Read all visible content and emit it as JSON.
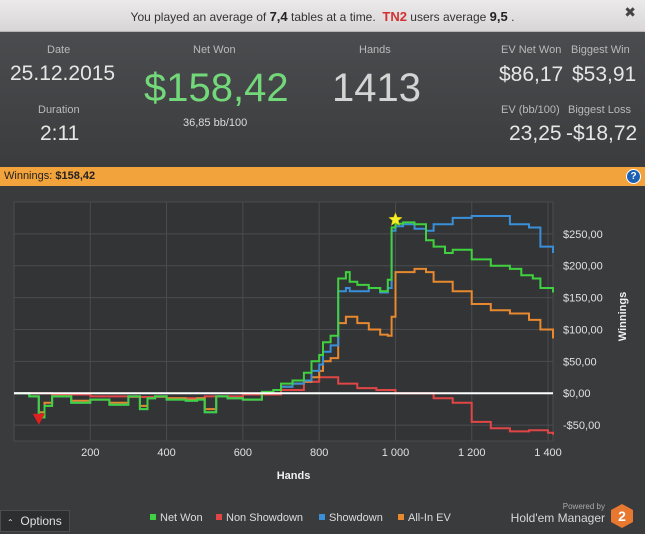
{
  "notice": {
    "prefix": "You played an average of",
    "avg_tables": "7,4",
    "middle": "tables at a time.",
    "group": "TN2",
    "suffix": "users average",
    "group_avg": "9,5",
    "end": ".",
    "close_label": "✖"
  },
  "stats": {
    "date_label": "Date",
    "date": "25.12.2015",
    "duration_label": "Duration",
    "duration": "2:11",
    "net_won_label": "Net Won",
    "net_won": "$158,42",
    "bb100": "36,85 bb/100",
    "hands_label": "Hands",
    "hands": "1413",
    "ev_net_won_label": "EV Net Won",
    "ev_net_won": "$86,17",
    "biggest_win_label": "Biggest Win",
    "biggest_win": "$53,91",
    "ev_bb_label": "EV (bb/100)",
    "ev_bb": "23,25",
    "biggest_loss_label": "Biggest Loss",
    "biggest_loss": "-$18,72"
  },
  "winnings_bar": {
    "label": "Winnings:",
    "value": "$158,42",
    "help": "?"
  },
  "colors": {
    "net_won": "#3fd13f",
    "non_showdown": "#e04646",
    "showdown": "#3a8fd9",
    "all_in_ev": "#e8892f",
    "accent": "#f2a33b"
  },
  "chart_data": {
    "type": "line",
    "xlabel": "Hands",
    "ylabel": "Winnings",
    "xlim": [
      0,
      1413
    ],
    "ylim": [
      -75,
      300
    ],
    "x_ticks": [
      200,
      400,
      600,
      800,
      1000,
      1200,
      1400
    ],
    "x_tick_labels": [
      "200",
      "400",
      "600",
      "800",
      "1 000",
      "1 200",
      "1 400"
    ],
    "y_ticks": [
      -50,
      0,
      50,
      100,
      150,
      200,
      250
    ],
    "y_tick_labels": [
      "-$50,00",
      "$0,00",
      "$50,00",
      "$100,00",
      "$150,00",
      "$200,00",
      "$250,00"
    ],
    "grid": true,
    "markers": [
      {
        "name": "max",
        "symbol": "star",
        "x": 1000,
        "y": 266
      },
      {
        "name": "min",
        "symbol": "triangle-down",
        "x": 65,
        "y": -40
      }
    ],
    "series": [
      {
        "name": "Net Won",
        "color": "#3fd13f",
        "x": [
          0,
          40,
          65,
          80,
          100,
          150,
          200,
          250,
          300,
          330,
          350,
          370,
          400,
          450,
          480,
          500,
          530,
          560,
          600,
          650,
          680,
          700,
          730,
          760,
          780,
          800,
          810,
          830,
          850,
          870,
          880,
          900,
          930,
          960,
          980,
          990,
          1000,
          1020,
          1050,
          1080,
          1100,
          1130,
          1150,
          1200,
          1250,
          1300,
          1330,
          1360,
          1380,
          1413
        ],
        "y": [
          0,
          -5,
          -38,
          -20,
          -5,
          -15,
          -10,
          -18,
          -5,
          -25,
          -8,
          -5,
          -10,
          -12,
          -10,
          -30,
          -5,
          -8,
          -10,
          2,
          5,
          15,
          20,
          32,
          50,
          60,
          80,
          90,
          180,
          190,
          175,
          170,
          165,
          160,
          178,
          260,
          266,
          268,
          265,
          240,
          230,
          220,
          225,
          210,
          200,
          195,
          185,
          180,
          165,
          158
        ]
      },
      {
        "name": "Non Showdown",
        "color": "#e04646",
        "x": [
          0,
          100,
          200,
          300,
          400,
          500,
          600,
          700,
          760,
          800,
          850,
          900,
          950,
          1000,
          1100,
          1150,
          1200,
          1250,
          1300,
          1350,
          1400,
          1413
        ],
        "y": [
          0,
          -2,
          -5,
          -6,
          -8,
          -5,
          -2,
          5,
          18,
          25,
          15,
          8,
          5,
          0,
          -8,
          -15,
          -45,
          -55,
          -60,
          -58,
          -62,
          -65
        ]
      },
      {
        "name": "Showdown",
        "color": "#3a8fd9",
        "x": [
          0,
          40,
          65,
          80,
          100,
          150,
          200,
          250,
          300,
          330,
          350,
          370,
          400,
          450,
          480,
          500,
          530,
          560,
          600,
          650,
          680,
          700,
          730,
          760,
          780,
          800,
          810,
          830,
          850,
          870,
          880,
          900,
          930,
          960,
          980,
          990,
          1000,
          1020,
          1050,
          1080,
          1100,
          1150,
          1200,
          1250,
          1300,
          1350,
          1380,
          1413
        ],
        "y": [
          0,
          -5,
          -38,
          -20,
          -5,
          -15,
          -10,
          -18,
          -5,
          -25,
          -8,
          -5,
          -10,
          -12,
          -10,
          -30,
          -5,
          -8,
          -10,
          2,
          5,
          10,
          15,
          20,
          35,
          45,
          65,
          75,
          160,
          165,
          160,
          160,
          165,
          158,
          165,
          255,
          262,
          265,
          258,
          255,
          265,
          275,
          278,
          278,
          265,
          260,
          230,
          220
        ]
      },
      {
        "name": "All-In EV",
        "color": "#e8892f",
        "x": [
          0,
          40,
          65,
          80,
          100,
          150,
          200,
          250,
          300,
          330,
          350,
          370,
          400,
          450,
          480,
          500,
          530,
          560,
          600,
          650,
          680,
          700,
          730,
          760,
          780,
          800,
          810,
          830,
          850,
          870,
          900,
          930,
          960,
          980,
          990,
          1000,
          1050,
          1080,
          1100,
          1150,
          1200,
          1250,
          1300,
          1350,
          1380,
          1413
        ],
        "y": [
          0,
          -5,
          -30,
          -15,
          -5,
          -12,
          -10,
          -15,
          -5,
          -20,
          -8,
          -5,
          -8,
          -10,
          -8,
          -25,
          -5,
          -8,
          -10,
          0,
          5,
          10,
          15,
          18,
          25,
          35,
          50,
          55,
          110,
          120,
          110,
          100,
          92,
          90,
          120,
          190,
          195,
          190,
          175,
          160,
          140,
          130,
          125,
          115,
          100,
          86
        ]
      }
    ]
  }
}
